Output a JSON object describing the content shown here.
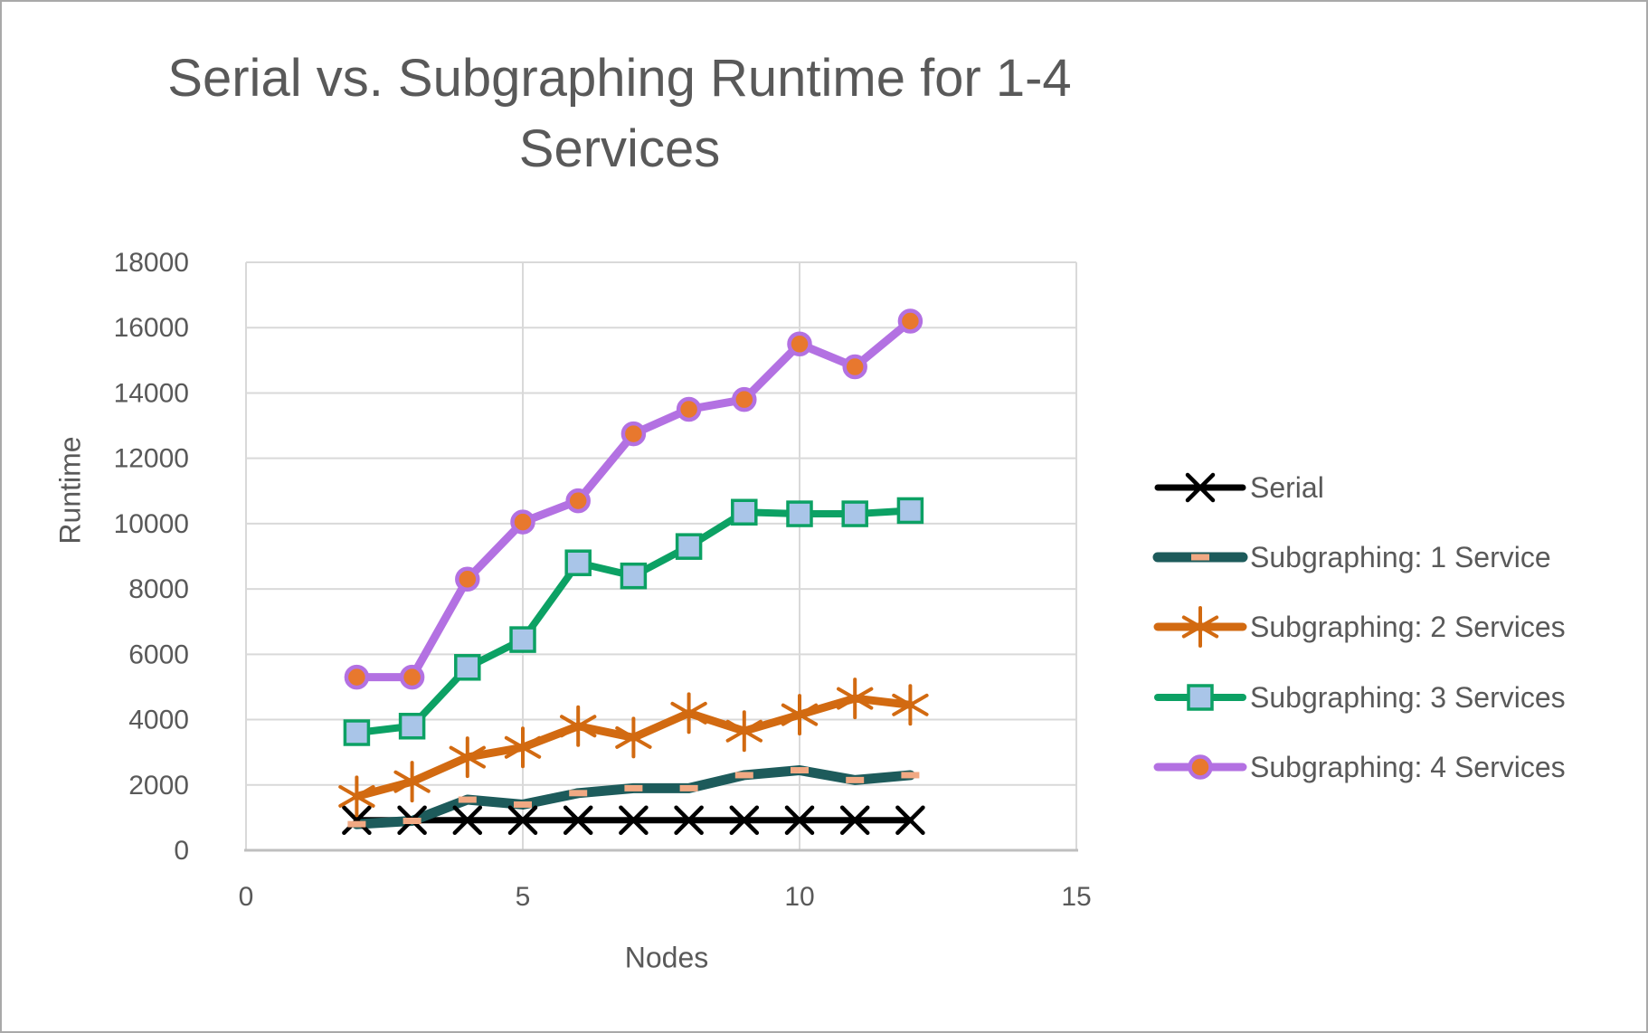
{
  "title": {
    "line1": "Serial vs. Subgraphing Runtime for 1-4",
    "line2": "Services",
    "full": "Serial vs. Subgraphing Runtime for 1-4 Services"
  },
  "axes": {
    "x": {
      "label": "Nodes",
      "min": 0,
      "max": 15,
      "tick_labels": [
        0,
        5,
        10,
        15
      ]
    },
    "y": {
      "label": "Runtime",
      "min": 0,
      "max": 18000,
      "step": 2000,
      "tick_labels": [
        0,
        2000,
        4000,
        6000,
        8000,
        10000,
        12000,
        14000,
        16000,
        18000
      ]
    }
  },
  "colors": {
    "text": "#595959",
    "gridline": "#d9d9d9",
    "axis_line": "#bfbfbf",
    "background": "#ffffff"
  },
  "chart_data": {
    "type": "line",
    "title": "Serial vs. Subgraphing Runtime for 1-4 Services",
    "xlabel": "Nodes",
    "ylabel": "Runtime",
    "xlim": [
      0,
      15
    ],
    "ylim": [
      0,
      18000
    ],
    "grid": true,
    "legend_position": "right",
    "x": [
      2,
      3,
      4,
      5,
      6,
      7,
      8,
      9,
      10,
      11,
      12
    ],
    "series": [
      {
        "name": "Serial",
        "color": "#000000",
        "marker": "x",
        "marker_color": "#000000",
        "line_width": 7,
        "values": [
          920,
          920,
          920,
          920,
          920,
          920,
          920,
          920,
          920,
          920,
          920
        ]
      },
      {
        "name": "Subgraphing: 1 Service",
        "color": "#1d5b5b",
        "marker": "dash",
        "marker_color": "#f1a983",
        "line_width": 11,
        "values": [
          800,
          900,
          1550,
          1400,
          1750,
          1900,
          1900,
          2300,
          2450,
          2150,
          2300
        ]
      },
      {
        "name": "Subgraphing: 2 Services",
        "color": "#d26a11",
        "marker": "asterisk",
        "marker_color": "#d26a11",
        "line_width": 9,
        "values": [
          1650,
          2100,
          2850,
          3150,
          3800,
          3450,
          4200,
          3650,
          4150,
          4650,
          4450
        ]
      },
      {
        "name": "Subgraphing: 3 Services",
        "color": "#0ca164",
        "marker": "square",
        "marker_fill": "#a9c5e8",
        "marker_color": "#0ca164",
        "line_width": 8,
        "values": [
          3600,
          3800,
          5600,
          6450,
          8800,
          8400,
          9300,
          10350,
          10300,
          10300,
          10400
        ]
      },
      {
        "name": "Subgraphing: 4 Services",
        "color": "#b371e2",
        "marker": "circle",
        "marker_fill": "#e8782e",
        "marker_color": "#b371e2",
        "line_width": 9,
        "values": [
          5300,
          5300,
          8300,
          10050,
          10700,
          12750,
          13500,
          13800,
          15500,
          14800,
          16200
        ]
      }
    ]
  }
}
